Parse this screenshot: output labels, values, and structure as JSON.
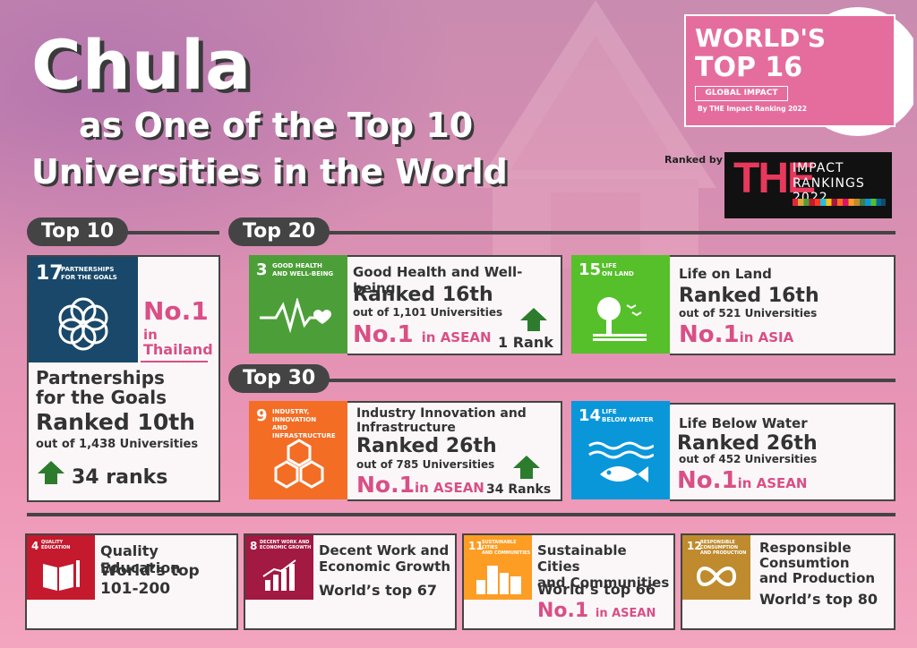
{
  "header": {
    "title": "Chula",
    "subtitle_line1": "as One of the Top 10",
    "subtitle_line2": "Universities in the World"
  },
  "badge": {
    "line1": "WORLD'S",
    "line2": "TOP 16",
    "line3": "GLOBAL IMPACT",
    "line4": "By THE Impact Ranking 2022"
  },
  "ranked_by": {
    "label": "Ranked by",
    "logo_letters": "THE",
    "logo_line1": "IMPACT",
    "logo_line2": "RANKINGS 2022"
  },
  "sections": {
    "top10": "Top 10",
    "top20": "Top 20",
    "top30": "Top 30"
  },
  "cards": {
    "sdg17": {
      "sdg_num": "17",
      "sdg_label_1": "PARTNERSHIPS",
      "sdg_label_2": "FOR THE GOALS",
      "badge_1": "No.1",
      "badge_2": "in",
      "badge_3": "Thailand",
      "name_1": "Partnerships",
      "name_2": "for the Goals",
      "rank": "Ranked 10th",
      "out_of": "out of 1,438 Universities",
      "change": "34 ranks",
      "color": "#19486a"
    },
    "sdg3": {
      "sdg_num": "3",
      "sdg_label_1": "GOOD HEALTH",
      "sdg_label_2": "AND WELL-BEING",
      "name": "Good Health and Well-being",
      "rank": "Ranked 16th",
      "out_of": "out of 1,101 Universities",
      "no1": "No.1",
      "no1_region": "in ASEAN",
      "change": "1 Rank",
      "color": "#4c9f38"
    },
    "sdg15": {
      "sdg_num": "15",
      "sdg_label_1": "LIFE",
      "sdg_label_2": "ON LAND",
      "name": "Life on Land",
      "rank": "Ranked 16th",
      "out_of": "out of 521 Universities",
      "no1": "No.1",
      "no1_region": "in ASIA",
      "color": "#56c02b"
    },
    "sdg9": {
      "sdg_num": "9",
      "sdg_label_1": "INDUSTRY, INNOVATION",
      "sdg_label_2": "AND INFRASTRUCTURE",
      "name_1": "Industry Innovation and",
      "name_2": "Infrastructure",
      "rank": "Ranked 26th",
      "out_of": "out of 785 Universities",
      "no1": "No.1",
      "no1_region": "in ASEAN",
      "change": "34 Ranks",
      "color": "#f36d25"
    },
    "sdg14": {
      "sdg_num": "14",
      "sdg_label_1": "LIFE",
      "sdg_label_2": "BELOW WATER",
      "name": "Life Below Water",
      "rank": "Ranked 26th",
      "out_of": "out of 452 Universities",
      "no1": "No.1",
      "no1_region": "in ASEAN",
      "color": "#0a97d9"
    },
    "sdg4": {
      "sdg_num": "4",
      "sdg_label_1": "QUALITY",
      "sdg_label_2": "EDUCATION",
      "name": "Quality Education",
      "rank_1": "World’s top",
      "rank_2": "101-200",
      "color": "#c5192d"
    },
    "sdg8": {
      "sdg_num": "8",
      "sdg_label_1": "DECENT WORK AND",
      "sdg_label_2": "ECONOMIC GROWTH",
      "name_1": "Decent Work and",
      "name_2": "Economic Growth",
      "rank": "World’s top 67",
      "color": "#a21942"
    },
    "sdg11": {
      "sdg_num": "11",
      "sdg_label_1": "SUSTAINABLE CITIES",
      "sdg_label_2": "AND COMMUNITIES",
      "name_1": "Sustainable Cities",
      "name_2": "and Communities",
      "rank": "World’s top 66",
      "no1": "No.1",
      "no1_region": "in ASEAN",
      "color": "#fd9d24"
    },
    "sdg12": {
      "sdg_num": "12",
      "sdg_label_1": "RESPONSIBLE",
      "sdg_label_2": "CONSUMPTION",
      "sdg_label_3": "AND PRODUCTION",
      "name_1": "Responsible",
      "name_2": "Consumtion",
      "name_3": "and Production",
      "rank": "World’s top 80",
      "color": "#bf8b2e"
    }
  }
}
